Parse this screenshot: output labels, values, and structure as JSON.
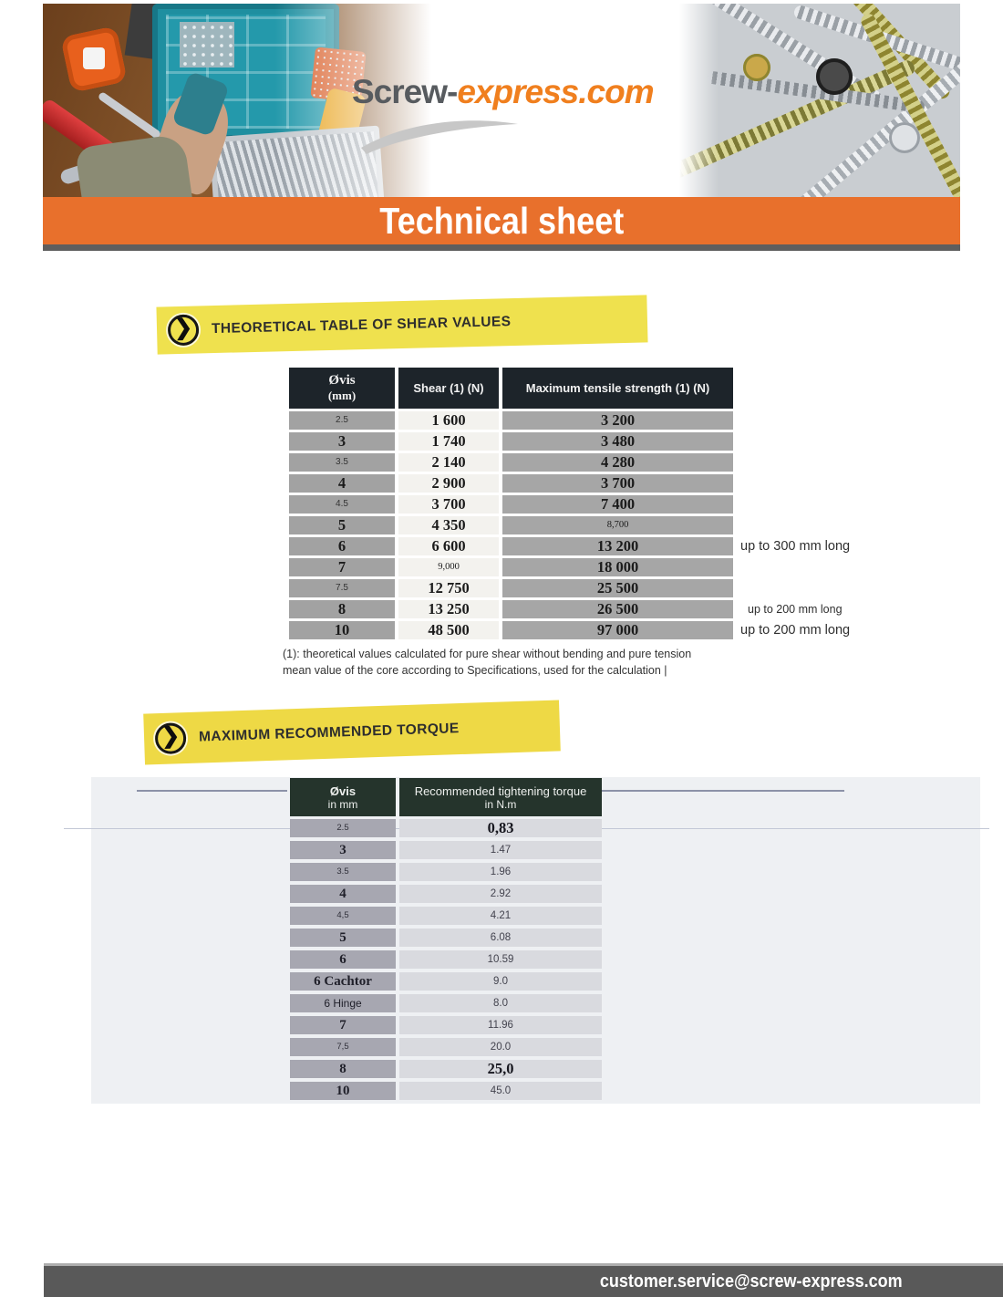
{
  "header": {
    "logo_part1": "Screw-",
    "logo_part2": "express.com",
    "banner_title": "Technical sheet"
  },
  "colors": {
    "accent_orange": "#E8702C",
    "logo_gray": "#575B5F",
    "logo_orange": "#F07F1E",
    "highlight_yellow": "#EFE14E",
    "table1_header_bg": "#1D242A",
    "table2_header_bg": "#25342C",
    "footer_bar_gray": "#595959"
  },
  "shear_section": {
    "heading": "THEORETICAL TABLE OF SHEAR VALUES",
    "columns": {
      "dia_line1": "Øvis",
      "dia_line2": "(mm)",
      "shear": "Shear (1) (N)",
      "tensile": "Maximum tensile strength (1) (N)"
    },
    "rows": [
      {
        "dia": "2.5",
        "shear": "1 600",
        "tensile": "3 200",
        "dia_small": true
      },
      {
        "dia": "3",
        "shear": "1 740",
        "tensile": "3 480"
      },
      {
        "dia": "3.5",
        "shear": "2 140",
        "tensile": "4 280",
        "dia_small": true
      },
      {
        "dia": "4",
        "shear": "2 900",
        "tensile": "3 700"
      },
      {
        "dia": "4.5",
        "shear": "3 700",
        "tensile": "7 400",
        "dia_small": true
      },
      {
        "dia": "5",
        "shear": "4 350",
        "tensile": "8,700",
        "tensile_small": true
      },
      {
        "dia": "6",
        "shear": "6 600",
        "tensile": "13 200",
        "note": "up to 300 mm long"
      },
      {
        "dia": "7",
        "shear": "9,000",
        "tensile": "18 000",
        "shear_small": true
      },
      {
        "dia": "7.5",
        "shear": "12 750",
        "tensile": "25 500",
        "dia_small": true
      },
      {
        "dia": "8",
        "shear": "13 250",
        "tensile": "26 500",
        "note": "up to 200 mm long",
        "note_small": true
      },
      {
        "dia": "10",
        "shear": "48 500",
        "tensile": "97 000",
        "note": "up to 200 mm long"
      }
    ],
    "footnote_line1": "(1): theoretical values calculated for pure shear without bending and pure tension",
    "footnote_line2": "mean value of the core according to Specifications, used for the calculation  |"
  },
  "torque_section": {
    "heading": "MAXIMUM RECOMMENDED TORQUE",
    "columns": {
      "dia_line1": "Øvis",
      "dia_line2": "in mm",
      "torque_line1": "Recommended tightening torque",
      "torque_line2": "in N.m"
    },
    "rows": [
      {
        "dia": "2.5",
        "torque": "0,83",
        "dia_small": true,
        "torque_bold": true
      },
      {
        "dia": "3",
        "torque": "1.47"
      },
      {
        "dia": "3.5",
        "torque": "1.96",
        "dia_small": true
      },
      {
        "dia": "4",
        "torque": "2.92"
      },
      {
        "dia": "4,5",
        "torque": "4.21",
        "dia_small": true
      },
      {
        "dia": "5",
        "torque": "6.08"
      },
      {
        "dia": "6",
        "torque": "10.59"
      },
      {
        "dia": "6 Cachtor",
        "torque": "9.0"
      },
      {
        "dia": "6 Hinge",
        "torque": "8.0",
        "dia_sans": true
      },
      {
        "dia": "7",
        "torque": "11.96"
      },
      {
        "dia": "7,5",
        "torque": "20.0",
        "dia_small": true
      },
      {
        "dia": "8",
        "torque": "25,0",
        "torque_bold": true
      },
      {
        "dia": "10",
        "torque": "45.0"
      }
    ]
  },
  "footer": {
    "email": "customer.service@screw-express.com"
  }
}
